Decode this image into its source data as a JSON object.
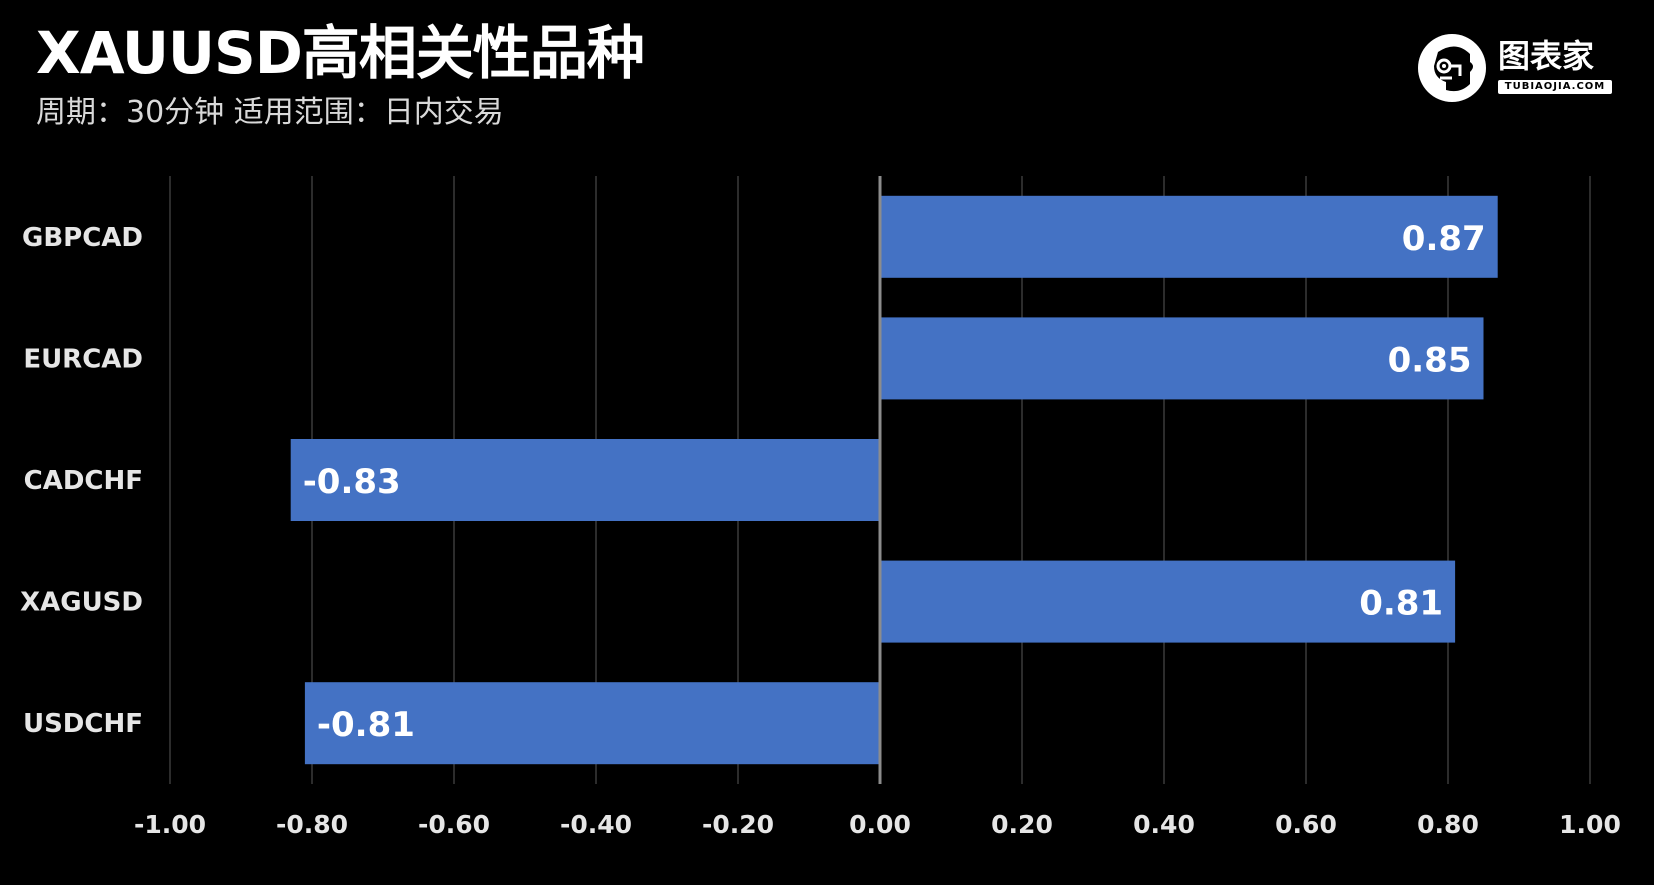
{
  "header": {
    "title": "XAUUSD高相关性品种",
    "subtitle": "周期：30分钟  适用范围：日内交易"
  },
  "logo": {
    "name": "图表家",
    "sub": "TUBIAOJIA.COM",
    "icon": "robot-head-icon"
  },
  "colors": {
    "background": "#000000",
    "bar": "#4472C4",
    "grid": "#3a3a3a",
    "axis": "#8c8c8c"
  },
  "chart_data": {
    "type": "bar",
    "orientation": "horizontal",
    "categories": [
      "GBPCAD",
      "EURCAD",
      "CADCHF",
      "XAGUSD",
      "USDCHF"
    ],
    "values": [
      0.87,
      0.85,
      -0.83,
      0.81,
      -0.81
    ],
    "data_labels": [
      "0.87",
      "0.85",
      "-0.83",
      "0.81",
      "-0.81"
    ],
    "xlim": [
      -1.0,
      1.0
    ],
    "xticks": [
      -1.0,
      -0.8,
      -0.6,
      -0.4,
      -0.2,
      0.0,
      0.2,
      0.4,
      0.6,
      0.8,
      1.0
    ],
    "xtick_labels": [
      "-1.00",
      "-0.80",
      "-0.60",
      "-0.40",
      "-0.20",
      "0.00",
      "0.20",
      "0.40",
      "0.60",
      "0.80",
      "1.00"
    ],
    "grid": true,
    "legend": false
  }
}
